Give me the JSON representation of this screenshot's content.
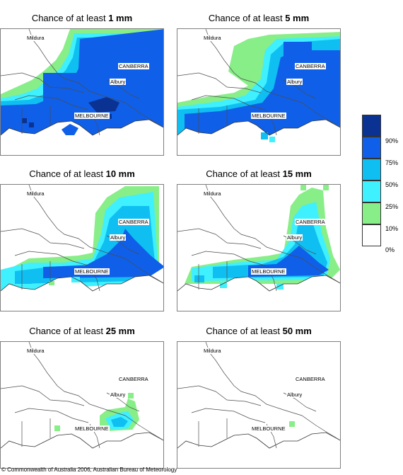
{
  "panels": [
    {
      "title_prefix": "Chance of at least ",
      "threshold": "1 mm"
    },
    {
      "title_prefix": "Chance of at least ",
      "threshold": "5 mm"
    },
    {
      "title_prefix": "Chance of at least ",
      "threshold": "10 mm"
    },
    {
      "title_prefix": "Chance of at least ",
      "threshold": "15 mm"
    },
    {
      "title_prefix": "Chance of at least ",
      "threshold": "25 mm"
    },
    {
      "title_prefix": "Chance of at least ",
      "threshold": "50 mm"
    }
  ],
  "places": {
    "mildura": "Mildura",
    "canberra": "CANBERRA",
    "albury": "Albury",
    "melbourne": "MELBOURNE"
  },
  "legend": {
    "labels": [
      "90%",
      "75%",
      "50%",
      "25%",
      "10%",
      "0%"
    ],
    "colors": [
      "#0a3293",
      "#0f5fe8",
      "#0fbff2",
      "#3ff0ff",
      "#88ee88",
      "#ffffff"
    ]
  },
  "colors": {
    "border": "#4d4d4d",
    "ocean_line": "#333333"
  },
  "copyright": "© Commonwealth of Australia 2006, Australian Bureau of Meteorology"
}
